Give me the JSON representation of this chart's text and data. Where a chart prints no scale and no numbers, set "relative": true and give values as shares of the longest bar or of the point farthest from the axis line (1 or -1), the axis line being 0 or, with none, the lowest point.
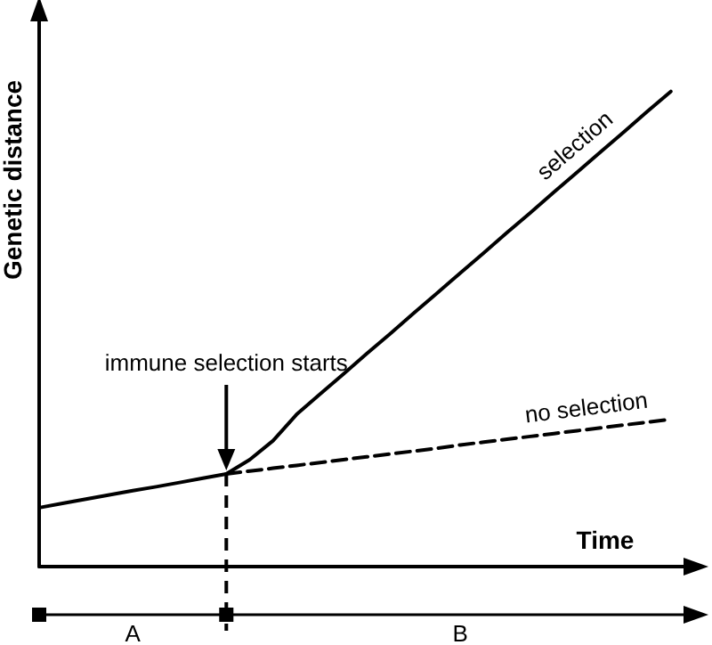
{
  "chart_data": {
    "type": "line",
    "relative": true,
    "xlabel": "Time",
    "ylabel": "Genetic distance",
    "categories": [
      null,
      null,
      null,
      null,
      null,
      null,
      null,
      null,
      null,
      null,
      null,
      null,
      null,
      null,
      null,
      null,
      null,
      null,
      null,
      null,
      null,
      null,
      null,
      null,
      null,
      null,
      null,
      null,
      null
    ],
    "series": [
      {
        "name": "selection",
        "color": "#000000",
        "line_style": "solid",
        "values": [
          0.124,
          0.133,
          0.142,
          0.151,
          0.16,
          0.168,
          0.177,
          0.186,
          0.195,
          0.225,
          0.265,
          0.32,
          0.363,
          0.405,
          0.448,
          0.49,
          0.533,
          0.575,
          0.618,
          0.66,
          0.703,
          0.745,
          0.788,
          0.83,
          0.873,
          0.915,
          0.958,
          1,
          null
        ]
      },
      {
        "name": "no selection",
        "color": "#000000",
        "line_style": "dashed",
        "values": [
          null,
          null,
          null,
          null,
          null,
          null,
          null,
          null,
          0.195,
          0.201,
          0.207,
          0.213,
          0.219,
          0.225,
          0.231,
          0.237,
          0.243,
          0.249,
          0.256,
          0.262,
          0.268,
          0.274,
          0.28,
          0.286,
          0.292,
          0.298,
          0.304,
          0.31,
          null
        ]
      }
    ],
    "annotations": [
      "immune selection starts",
      "A",
      "B"
    ],
    "legend": false,
    "grid": false,
    "marker": "none"
  }
}
